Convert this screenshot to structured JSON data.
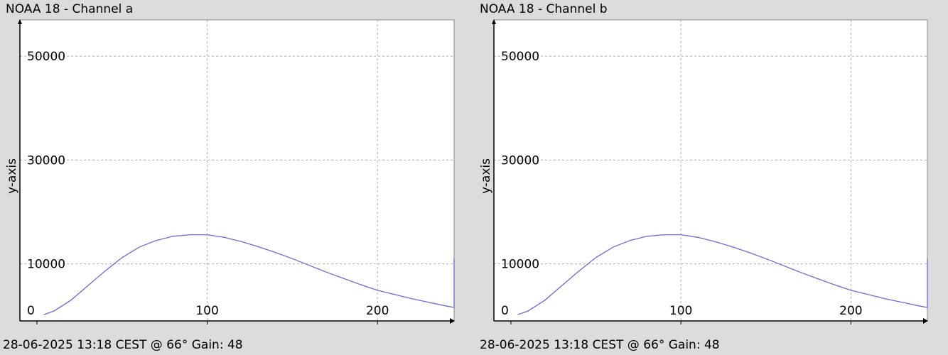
{
  "colors": {
    "background": "#dcdcdc",
    "plot_background": "#ffffff",
    "grid": "#b0b0b0",
    "series_line": "#6a6ad2",
    "axis": "#000000"
  },
  "chart_data": [
    {
      "type": "line",
      "title": "NOAA 18 - Channel a",
      "footer": "28-06-2025 13:18 CEST @ 66° Gain: 48",
      "ylabel": "y-axis",
      "xlabel": "",
      "xlim": [
        -10,
        245
      ],
      "ylim": [
        -1000,
        57000
      ],
      "xticks": [
        0,
        100,
        200
      ],
      "yticks": [
        0,
        10000,
        30000,
        50000
      ],
      "grid": true,
      "series": [
        {
          "x": [
            4,
            10,
            20,
            30,
            40,
            50,
            60,
            70,
            80,
            90,
            100,
            110,
            120,
            130,
            140,
            150,
            160,
            170,
            180,
            190,
            200,
            210,
            220,
            230,
            240,
            245,
            245
          ],
          "y": [
            200,
            900,
            3000,
            5800,
            8600,
            11200,
            13200,
            14500,
            15300,
            15600,
            15600,
            15100,
            14300,
            13300,
            12200,
            11000,
            9700,
            8400,
            7200,
            6000,
            4900,
            4100,
            3300,
            2600,
            1900,
            1600,
            11000
          ]
        }
      ]
    },
    {
      "type": "line",
      "title": "NOAA 18 - Channel b",
      "footer": "28-06-2025 13:18 CEST @ 66° Gain: 48",
      "ylabel": "y-axis",
      "xlabel": "",
      "xlim": [
        -10,
        245
      ],
      "ylim": [
        -1000,
        57000
      ],
      "xticks": [
        0,
        100,
        200
      ],
      "yticks": [
        0,
        10000,
        30000,
        50000
      ],
      "grid": true,
      "series": [
        {
          "x": [
            4,
            10,
            20,
            30,
            40,
            50,
            60,
            70,
            80,
            90,
            100,
            110,
            120,
            130,
            140,
            150,
            160,
            170,
            180,
            190,
            200,
            210,
            220,
            230,
            240,
            245,
            245
          ],
          "y": [
            200,
            900,
            3000,
            5800,
            8600,
            11200,
            13200,
            14500,
            15300,
            15600,
            15600,
            15100,
            14300,
            13300,
            12200,
            11000,
            9700,
            8400,
            7200,
            6000,
            4900,
            4100,
            3300,
            2600,
            1900,
            1600,
            11000
          ]
        }
      ]
    }
  ]
}
